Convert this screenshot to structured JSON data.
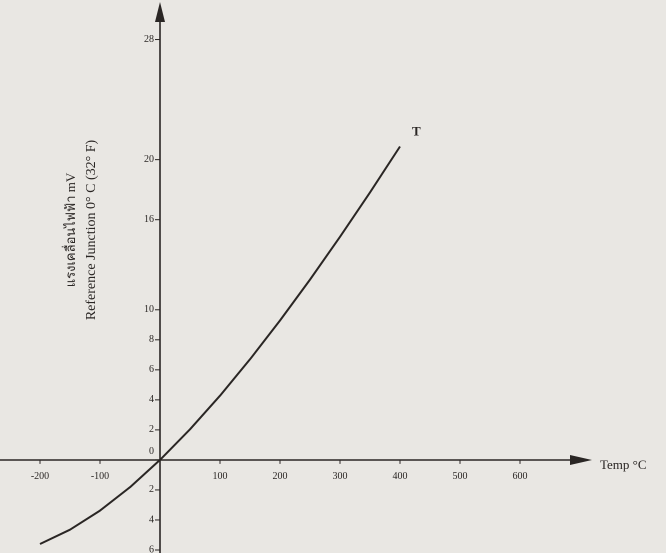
{
  "chart_data": {
    "type": "line",
    "x": [
      -200,
      -150,
      -100,
      -50,
      0,
      50,
      100,
      150,
      200,
      250,
      300,
      350,
      400
    ],
    "series": [
      {
        "name": "T",
        "color": "#2a2624",
        "values": [
          -5.603,
          -4.648,
          -3.379,
          -1.819,
          0,
          2.036,
          4.279,
          6.704,
          9.288,
          12.013,
          14.862,
          17.819,
          20.872
        ]
      }
    ],
    "xlabel": "Temp °C",
    "ylabel": [
      "แรงเคลื่อนไฟฟ้า mV",
      "Reference Junction 0° C (32° F)"
    ],
    "xlim": [
      -265,
      715
    ],
    "ylim": [
      -6.2,
      30.3
    ],
    "xticks": [
      -200,
      -100,
      100,
      200,
      300,
      400,
      500,
      600
    ],
    "yticks": [
      28,
      20,
      16,
      10,
      8,
      6,
      4,
      2,
      0,
      {
        "value": -2,
        "label": "2"
      },
      {
        "value": -4,
        "label": "4"
      },
      {
        "value": -6,
        "label": "6"
      }
    ]
  }
}
